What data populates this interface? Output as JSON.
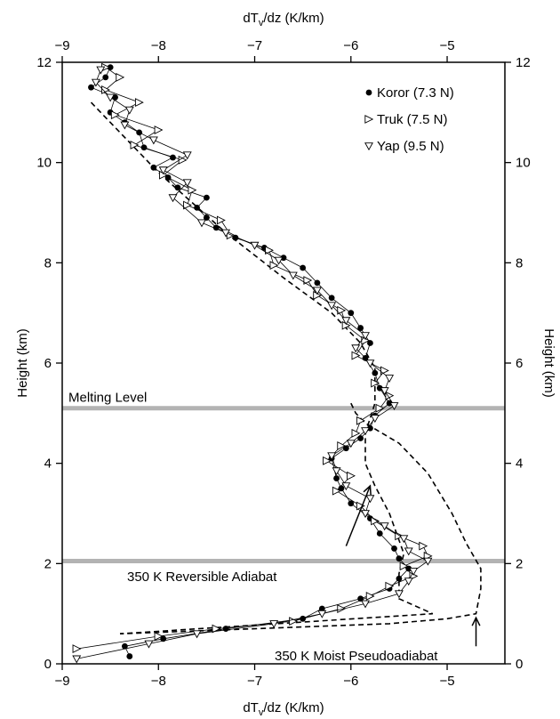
{
  "chart_data": {
    "type": "line",
    "x_axis_label_top": "dT",
    "x_axis_label_bottom": "dT",
    "x_label_sub": "v",
    "x_label_rest": "/dz (K/km)",
    "y_axis_label_left": "Height (km)",
    "y_axis_label_right": "Height (km)",
    "xlim": [
      -9,
      -4.4
    ],
    "ylim": [
      0,
      12
    ],
    "x_ticks": [
      -9,
      -8,
      -7,
      -6,
      -5
    ],
    "x_tick_labels": [
      "−9",
      "−8",
      "−7",
      "−6",
      "−5"
    ],
    "y_ticks": [
      0,
      2,
      4,
      6,
      8,
      10,
      12
    ],
    "y_tick_labels": [
      "0",
      "2",
      "4",
      "6",
      "8",
      "10",
      "12"
    ],
    "grid": false,
    "legend_position": "top-right",
    "series": [
      {
        "name": "Koror (7.3 N)",
        "marker": "filled-circle",
        "points": [
          [
            -8.3,
            0.15
          ],
          [
            -8.35,
            0.35
          ],
          [
            -7.95,
            0.5
          ],
          [
            -7.3,
            0.7
          ],
          [
            -6.5,
            0.9
          ],
          [
            -6.3,
            1.1
          ],
          [
            -5.9,
            1.3
          ],
          [
            -5.6,
            1.5
          ],
          [
            -5.5,
            1.7
          ],
          [
            -5.4,
            1.9
          ],
          [
            -5.5,
            2.1
          ],
          [
            -5.55,
            2.3
          ],
          [
            -5.7,
            2.6
          ],
          [
            -5.8,
            2.9
          ],
          [
            -6.0,
            3.2
          ],
          [
            -6.1,
            3.5
          ],
          [
            -6.15,
            3.7
          ],
          [
            -6.2,
            4.1
          ],
          [
            -6.05,
            4.3
          ],
          [
            -5.9,
            4.5
          ],
          [
            -5.8,
            4.7
          ],
          [
            -5.75,
            4.95
          ],
          [
            -5.6,
            5.2
          ],
          [
            -5.7,
            5.5
          ],
          [
            -5.75,
            5.8
          ],
          [
            -5.85,
            6.1
          ],
          [
            -5.8,
            6.4
          ],
          [
            -5.9,
            6.7
          ],
          [
            -6.0,
            7.0
          ],
          [
            -6.2,
            7.3
          ],
          [
            -6.35,
            7.6
          ],
          [
            -6.5,
            7.9
          ],
          [
            -6.7,
            8.1
          ],
          [
            -6.9,
            8.3
          ],
          [
            -7.2,
            8.5
          ],
          [
            -7.4,
            8.7
          ],
          [
            -7.5,
            8.9
          ],
          [
            -7.6,
            9.1
          ],
          [
            -7.5,
            9.3
          ],
          [
            -7.8,
            9.5
          ],
          [
            -7.9,
            9.7
          ],
          [
            -8.05,
            9.9
          ],
          [
            -7.85,
            10.1
          ],
          [
            -8.15,
            10.3
          ],
          [
            -8.2,
            10.6
          ],
          [
            -8.35,
            10.8
          ],
          [
            -8.5,
            11.0
          ],
          [
            -8.45,
            11.3
          ],
          [
            -8.7,
            11.5
          ],
          [
            -8.55,
            11.7
          ],
          [
            -8.5,
            11.9
          ]
        ]
      },
      {
        "name": "Truk (7.5 N)",
        "marker": "triangle-right",
        "points": [
          [
            -8.85,
            0.3
          ],
          [
            -8.0,
            0.55
          ],
          [
            -7.4,
            0.7
          ],
          [
            -6.6,
            0.85
          ],
          [
            -6.1,
            1.1
          ],
          [
            -5.8,
            1.35
          ],
          [
            -5.6,
            1.55
          ],
          [
            -5.35,
            1.75
          ],
          [
            -5.45,
            1.95
          ],
          [
            -5.2,
            2.15
          ],
          [
            -5.25,
            2.35
          ],
          [
            -5.5,
            2.55
          ],
          [
            -5.75,
            2.85
          ],
          [
            -5.9,
            3.15
          ],
          [
            -6.15,
            3.45
          ],
          [
            -6.0,
            3.75
          ],
          [
            -6.25,
            4.05
          ],
          [
            -6.1,
            4.35
          ],
          [
            -5.95,
            4.6
          ],
          [
            -5.9,
            4.85
          ],
          [
            -5.7,
            5.1
          ],
          [
            -5.6,
            5.35
          ],
          [
            -5.75,
            5.6
          ],
          [
            -5.65,
            5.85
          ],
          [
            -5.95,
            6.15
          ],
          [
            -5.85,
            6.45
          ],
          [
            -6.05,
            6.75
          ],
          [
            -6.1,
            7.05
          ],
          [
            -6.35,
            7.35
          ],
          [
            -6.45,
            7.65
          ],
          [
            -6.8,
            7.95
          ],
          [
            -6.85,
            8.25
          ],
          [
            -7.25,
            8.55
          ],
          [
            -7.35,
            8.85
          ],
          [
            -7.7,
            9.15
          ],
          [
            -7.65,
            9.45
          ],
          [
            -7.95,
            9.75
          ],
          [
            -7.75,
            10.05
          ],
          [
            -8.25,
            10.35
          ],
          [
            -8.0,
            10.65
          ],
          [
            -8.45,
            10.95
          ],
          [
            -8.2,
            11.2
          ],
          [
            -8.55,
            11.45
          ],
          [
            -8.4,
            11.7
          ],
          [
            -8.55,
            11.9
          ]
        ]
      },
      {
        "name": "Yap (9.5 N)",
        "marker": "triangle-down",
        "points": [
          [
            -8.85,
            0.1
          ],
          [
            -8.1,
            0.4
          ],
          [
            -7.6,
            0.6
          ],
          [
            -6.8,
            0.8
          ],
          [
            -6.3,
            1.0
          ],
          [
            -5.85,
            1.2
          ],
          [
            -5.5,
            1.4
          ],
          [
            -5.4,
            1.65
          ],
          [
            -5.35,
            1.85
          ],
          [
            -5.2,
            2.05
          ],
          [
            -5.4,
            2.25
          ],
          [
            -5.45,
            2.5
          ],
          [
            -5.65,
            2.75
          ],
          [
            -5.85,
            3.0
          ],
          [
            -5.8,
            3.3
          ],
          [
            -6.05,
            3.55
          ],
          [
            -6.15,
            3.85
          ],
          [
            -6.2,
            4.15
          ],
          [
            -6.0,
            4.4
          ],
          [
            -5.85,
            4.65
          ],
          [
            -5.75,
            4.9
          ],
          [
            -5.55,
            5.15
          ],
          [
            -5.65,
            5.45
          ],
          [
            -5.6,
            5.7
          ],
          [
            -5.8,
            6.0
          ],
          [
            -5.95,
            6.3
          ],
          [
            -5.85,
            6.55
          ],
          [
            -6.05,
            6.85
          ],
          [
            -6.2,
            7.15
          ],
          [
            -6.35,
            7.45
          ],
          [
            -6.6,
            7.75
          ],
          [
            -6.75,
            8.05
          ],
          [
            -7.0,
            8.35
          ],
          [
            -7.3,
            8.6
          ],
          [
            -7.55,
            8.8
          ],
          [
            -7.85,
            9.3
          ],
          [
            -7.7,
            9.6
          ],
          [
            -7.95,
            9.85
          ],
          [
            -7.7,
            10.15
          ],
          [
            -8.05,
            10.45
          ],
          [
            -8.35,
            10.75
          ],
          [
            -8.3,
            11.05
          ],
          [
            -8.5,
            11.3
          ],
          [
            -8.65,
            11.6
          ],
          [
            -8.6,
            11.85
          ]
        ]
      }
    ],
    "reference_lines": [
      {
        "name": "350 K Reversible Adiabat",
        "style": "dashed",
        "points": [
          [
            -8.7,
            11.2
          ],
          [
            -8.0,
            9.8
          ],
          [
            -7.3,
            8.6
          ],
          [
            -6.7,
            7.7
          ],
          [
            -6.2,
            7.0
          ],
          [
            -5.9,
            6.4
          ],
          [
            -5.75,
            5.9
          ],
          [
            -5.75,
            5.2
          ],
          [
            -5.85,
            4.6
          ],
          [
            -5.85,
            4.0
          ],
          [
            -5.75,
            3.55
          ],
          [
            -5.6,
            3.0
          ],
          [
            -5.45,
            2.2
          ],
          [
            -5.5,
            1.8
          ],
          [
            -5.5,
            1.3
          ],
          [
            -5.15,
            1.0
          ],
          [
            -8.4,
            0.6
          ]
        ]
      },
      {
        "name": "350 K Moist Pseudoadiabat",
        "style": "dashed",
        "points": [
          [
            -6.0,
            5.2
          ],
          [
            -5.95,
            5.0
          ],
          [
            -5.85,
            4.8
          ],
          [
            -5.5,
            4.4
          ],
          [
            -5.2,
            3.8
          ],
          [
            -4.95,
            3.0
          ],
          [
            -4.8,
            2.4
          ],
          [
            -4.65,
            1.9
          ],
          [
            -4.65,
            1.5
          ],
          [
            -4.7,
            1.0
          ],
          [
            -5.0,
            0.9
          ],
          [
            -5.6,
            0.8
          ],
          [
            -8.4,
            0.6
          ]
        ]
      }
    ],
    "horizontal_bands": [
      {
        "label": "Melting Level",
        "y": 5.1,
        "color": "#b3b3b3"
      },
      {
        "label": "",
        "y": 2.05,
        "color": "#b3b3b3"
      }
    ],
    "annotations": [
      {
        "text": "350 K Reversible Adiabat",
        "arrow_from": [
          -6.05,
          2.35
        ],
        "arrow_to": [
          -5.8,
          3.55
        ]
      },
      {
        "text": "350 K Moist Pseudoadiabat",
        "arrow_from": [
          -4.7,
          0.35
        ],
        "arrow_to": [
          -4.7,
          0.92
        ]
      }
    ]
  }
}
